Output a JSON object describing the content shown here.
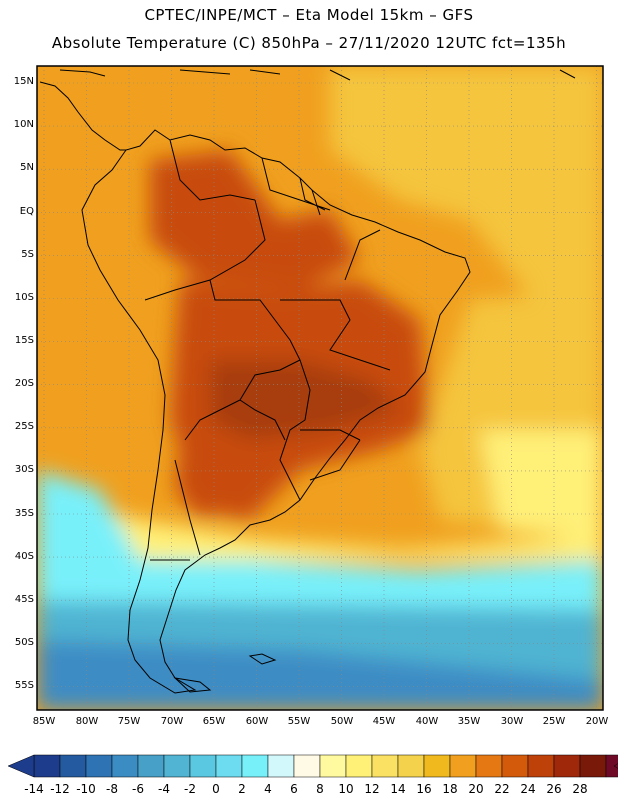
{
  "header": {
    "line1": "CPTEC/INPE/MCT –  Eta Model 15km – GFS",
    "line2": "Absolute Temperature (C) 850hPa – 27/11/2020 12UTC fct=135h"
  },
  "axes": {
    "lat_labels": [
      "15N",
      "10N",
      "5N",
      "EQ",
      "5S",
      "10S",
      "15S",
      "20S",
      "25S",
      "30S",
      "35S",
      "40S",
      "45S",
      "50S",
      "55S"
    ],
    "lon_labels": [
      "85W",
      "80W",
      "75W",
      "70W",
      "65W",
      "60W",
      "55W",
      "50W",
      "45W",
      "40W",
      "35W",
      "30W",
      "25W",
      "20W"
    ]
  },
  "colorbar": {
    "labels": [
      "-14",
      "-12",
      "-10",
      "-8",
      "-6",
      "-4",
      "-2",
      "0",
      "2",
      "4",
      "6",
      "8",
      "10",
      "12",
      "14",
      "16",
      "18",
      "20",
      "22",
      "24",
      "26",
      "28"
    ],
    "colors": [
      "#1e3c8c",
      "#245aa0",
      "#2e74b4",
      "#3c8cc4",
      "#46a0c8",
      "#50b4d2",
      "#5ac8e0",
      "#6edcf0",
      "#78f0fa",
      "#d2f8fc",
      "#fffae6",
      "#fffaa0",
      "#fff078",
      "#fae164",
      "#f5d24b",
      "#f0b91e",
      "#f0a01e",
      "#e67814",
      "#d25a0a",
      "#be410a",
      "#a0280a",
      "#78190a",
      "#6e0a28"
    ]
  },
  "map": {
    "colors": {
      "hot": "#c84b0a",
      "veryhot": "#a83c0e",
      "warm": "#f0a01e",
      "mild": "#f5c53c",
      "cool": "#fff078",
      "cold": "#78f0fa",
      "colder": "#50b4d2",
      "coldest": "#3c8cc4",
      "land_outline": "#000000",
      "grid": "#888888"
    }
  }
}
